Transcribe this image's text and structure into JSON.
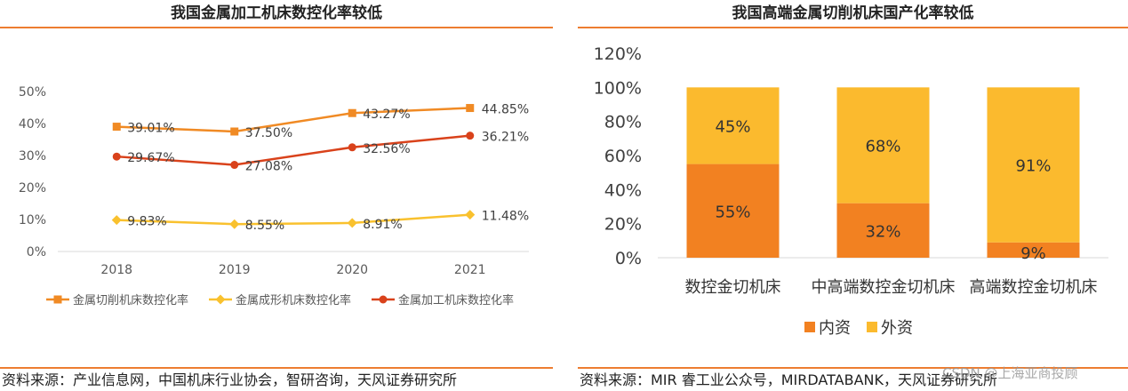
{
  "colors": {
    "accent_rule": "#ED7D31",
    "series_cutting": "#F08A24",
    "series_forming": "#F9C12E",
    "series_processing": "#D9421B",
    "bar_domestic": "#F28121",
    "bar_foreign": "#FBBA2E",
    "axis_text": "#595959",
    "grid": "#D9D9D9"
  },
  "left": {
    "title": "我国金属加工机床数控化率较低",
    "source": "资料来源：产业信息网，中国机床行业协会，智研咨询，天风证券研究所"
  },
  "right": {
    "title": "我国高端金属切削机床国产化率较低",
    "source": "资料来源：MIR 睿工业公众号，MIRDATABANK，天风证券研究所",
    "watermark": "CSDN @上海亚商投顾"
  },
  "chart_data": [
    {
      "type": "line",
      "title": "我国金属加工机床数控化率较低",
      "categories": [
        "2018",
        "2019",
        "2020",
        "2021"
      ],
      "ylim": [
        0,
        50
      ],
      "yticks": [
        "0%",
        "10%",
        "20%",
        "30%",
        "40%",
        "50%"
      ],
      "series": [
        {
          "name": "金属切削机床数控化率",
          "values": [
            39.01,
            37.5,
            43.27,
            44.85
          ],
          "labels": [
            "39.01%",
            "37.50%",
            "43.27%",
            "44.85%"
          ],
          "marker": "square",
          "color": "#F08A24"
        },
        {
          "name": "金属成形机床数控化率",
          "values": [
            9.83,
            8.55,
            8.91,
            11.48
          ],
          "labels": [
            "9.83%",
            "8.55%",
            "8.91%",
            "11.48%"
          ],
          "marker": "diamond",
          "color": "#F9C12E"
        },
        {
          "name": "金属加工机床数控化率",
          "values": [
            29.67,
            27.08,
            32.56,
            36.21
          ],
          "labels": [
            "29.67%",
            "27.08%",
            "32.56%",
            "36.21%"
          ],
          "marker": "circle",
          "color": "#D9421B"
        }
      ],
      "legend_position": "bottom"
    },
    {
      "type": "bar",
      "stacked": true,
      "title": "我国高端金属切削机床国产化率较低",
      "categories": [
        "数控金切机床",
        "中高端数控金切机床",
        "高端数控金切机床"
      ],
      "ylim": [
        0,
        120
      ],
      "yticks": [
        "0%",
        "20%",
        "40%",
        "60%",
        "80%",
        "100%",
        "120%"
      ],
      "series": [
        {
          "name": "内资",
          "values": [
            55,
            32,
            9
          ],
          "labels": [
            "55%",
            "32%",
            "9%"
          ],
          "color": "#F28121"
        },
        {
          "name": "外资",
          "values": [
            45,
            68,
            91
          ],
          "labels": [
            "45%",
            "68%",
            "91%"
          ],
          "color": "#FBBA2E"
        }
      ],
      "legend_position": "bottom"
    }
  ]
}
